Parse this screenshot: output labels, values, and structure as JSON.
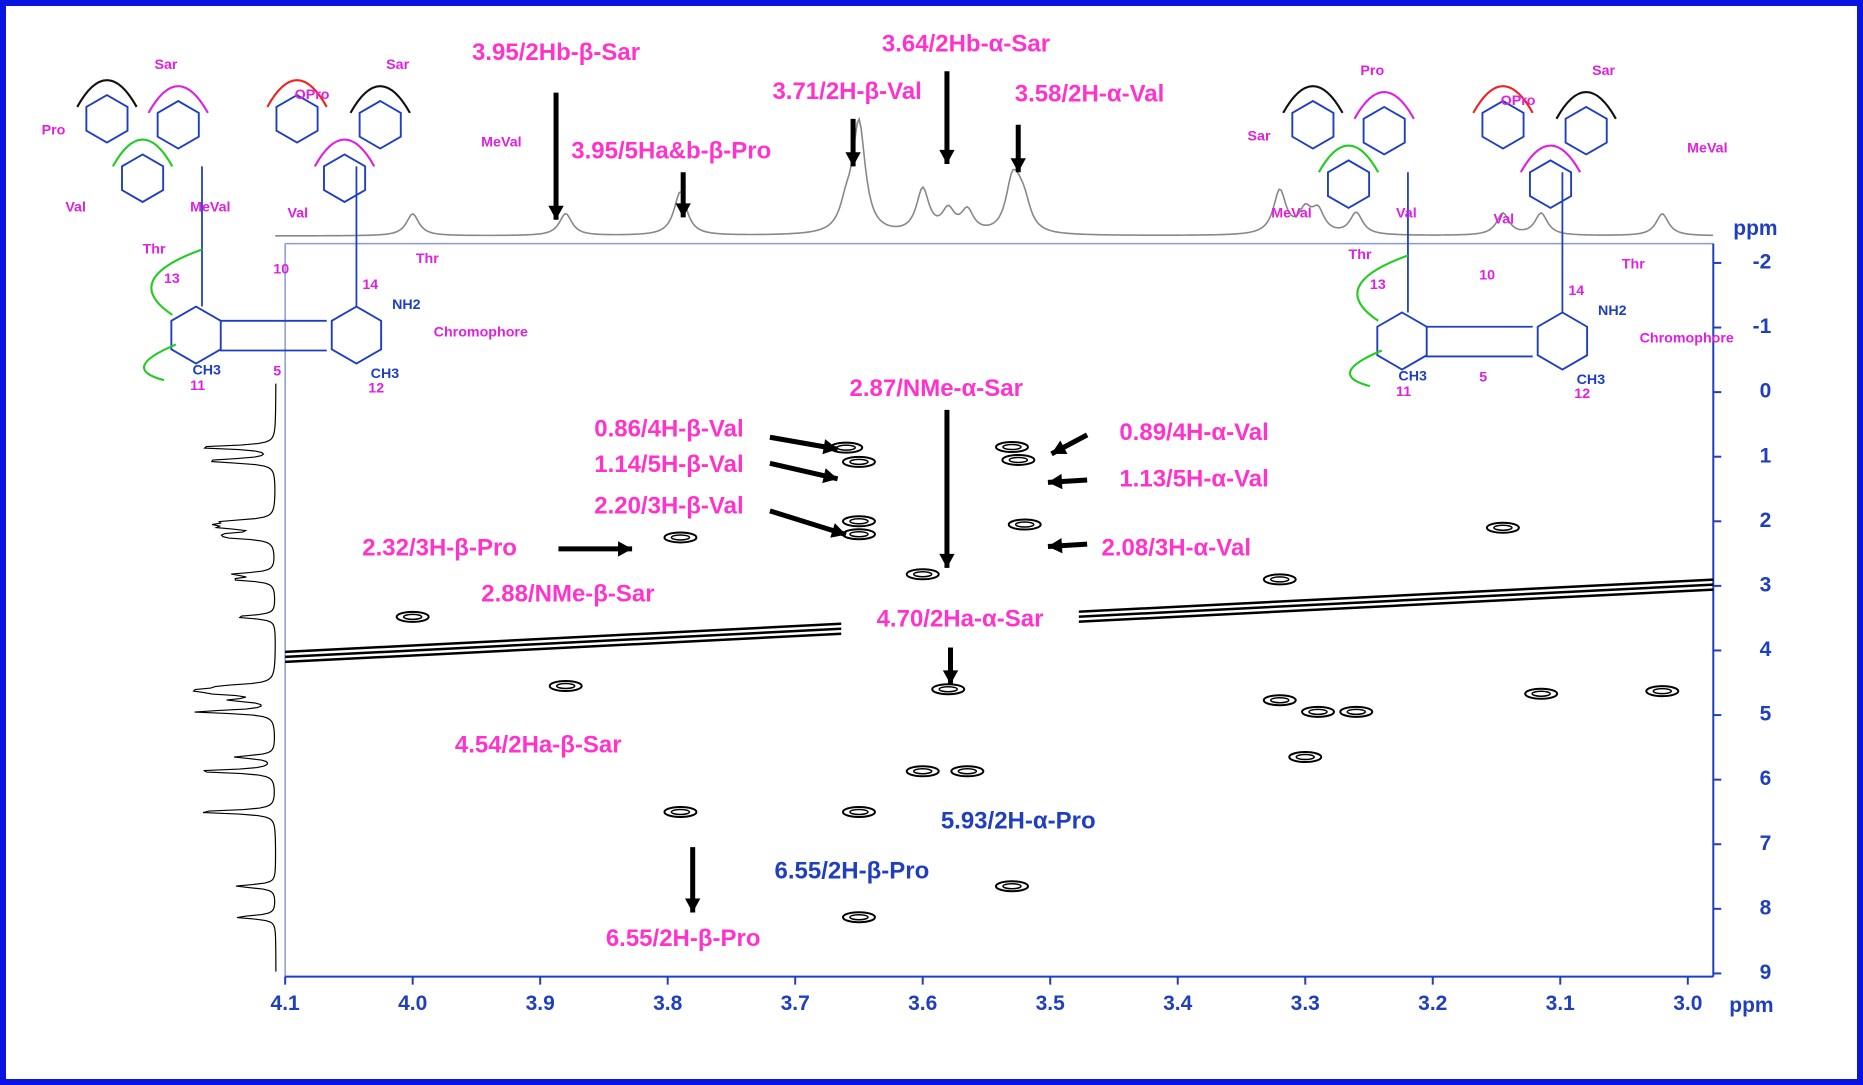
{
  "chart_data": {
    "type": "contour",
    "xlabel": "ppm",
    "ylabel": "ppm",
    "xlim": [
      4.1,
      2.98
    ],
    "ylim": [
      -2.3,
      9.05
    ],
    "xticks": [
      {
        "value": 4.1,
        "label": "4.1"
      },
      {
        "value": 4,
        "label": "4.0"
      },
      3.9,
      3.8,
      3.7,
      3.6,
      3.5,
      3.4,
      3.3,
      3.2,
      3.1,
      {
        "value": 3,
        "label": "3.0"
      }
    ],
    "yticks": [
      -2,
      -1,
      0,
      1,
      2,
      3,
      4,
      5,
      6,
      7,
      8,
      9
    ],
    "color": "#000000",
    "x": [
      3.66,
      3.65,
      3.53,
      3.525,
      3.65,
      3.65,
      3.52,
      3.79,
      3.6,
      4.0,
      3.88,
      3.58,
      3.32,
      3.29,
      3.26,
      3.115,
      3.02,
      3.3,
      3.565,
      3.6,
      3.79,
      3.65,
      3.53,
      3.65,
      3.145,
      3.32
    ],
    "values": [
      0.86,
      1.08,
      0.85,
      1.05,
      2.0,
      2.2,
      2.05,
      2.25,
      2.82,
      3.48,
      4.55,
      4.6,
      4.77,
      4.95,
      4.95,
      4.67,
      4.63,
      5.65,
      5.87,
      5.87,
      6.5,
      6.5,
      7.65,
      8.13,
      2.1,
      2.9
    ],
    "annotations": [
      {
        "text": "3.95/2Hb-β-Sar",
        "color": "#ff33cc"
      },
      {
        "text": "3.95/5Ha&b-β-Pro",
        "color": "#ff33cc"
      },
      {
        "text": "3.71/2H-β-Val",
        "color": "#ff33cc"
      },
      {
        "text": "3.64/2Hb-α-Sar",
        "color": "#ff33cc"
      },
      {
        "text": "3.58/2H-α-Val",
        "color": "#ff33cc"
      },
      {
        "text": "2.87/NMe-α-Sar",
        "color": "#ff33cc"
      },
      {
        "text": "0.86/4H-β-Val",
        "color": "#ff33cc"
      },
      {
        "text": "1.14/5H-β-Val",
        "color": "#ff33cc"
      },
      {
        "text": "2.20/3H-β-Val",
        "color": "#ff33cc"
      },
      {
        "text": "2.32/3H-β-Pro",
        "color": "#ff33cc"
      },
      {
        "text": "2.88/NMe-β-Sar",
        "color": "#ff33cc"
      },
      {
        "text": "0.89/4H-α-Val",
        "color": "#ff33cc"
      },
      {
        "text": "1.13/5H-α-Val",
        "color": "#ff33cc"
      },
      {
        "text": "2.08/3H-α-Val",
        "color": "#ff33cc"
      },
      {
        "text": "4.70/2Ha-α-Sar",
        "color": "#ff33cc"
      },
      {
        "text": "4.54/2Ha-β-Sar",
        "color": "#ff33cc"
      },
      {
        "text": "5.93/2H-α-Pro",
        "color": "#1f3fbf"
      },
      {
        "text": "6.55/2H-β-Pro",
        "color": "#1f3fbf"
      },
      {
        "text": "6.55/2H-β-Pro",
        "color": "#ff33cc"
      }
    ],
    "structures": [
      {
        "labels": [
          "Sar",
          "Pro",
          "Val",
          "MeVal",
          "Thr",
          "OPro",
          "Sar",
          "MeVal",
          "Val",
          "Thr",
          "Chromophore",
          "13",
          "14",
          "10",
          "5",
          "11",
          "12",
          "NH2",
          "CH3",
          "CH3"
        ]
      },
      {
        "labels": [
          "Pro",
          "Sar",
          "MeVal",
          "Val",
          "Thr",
          "OPro",
          "Sar",
          "MeVal",
          "Val",
          "Thr",
          "Chromophore",
          "13",
          "14",
          "10",
          "5",
          "11",
          "12",
          "NH2",
          "CH3",
          "CH3"
        ]
      }
    ]
  }
}
